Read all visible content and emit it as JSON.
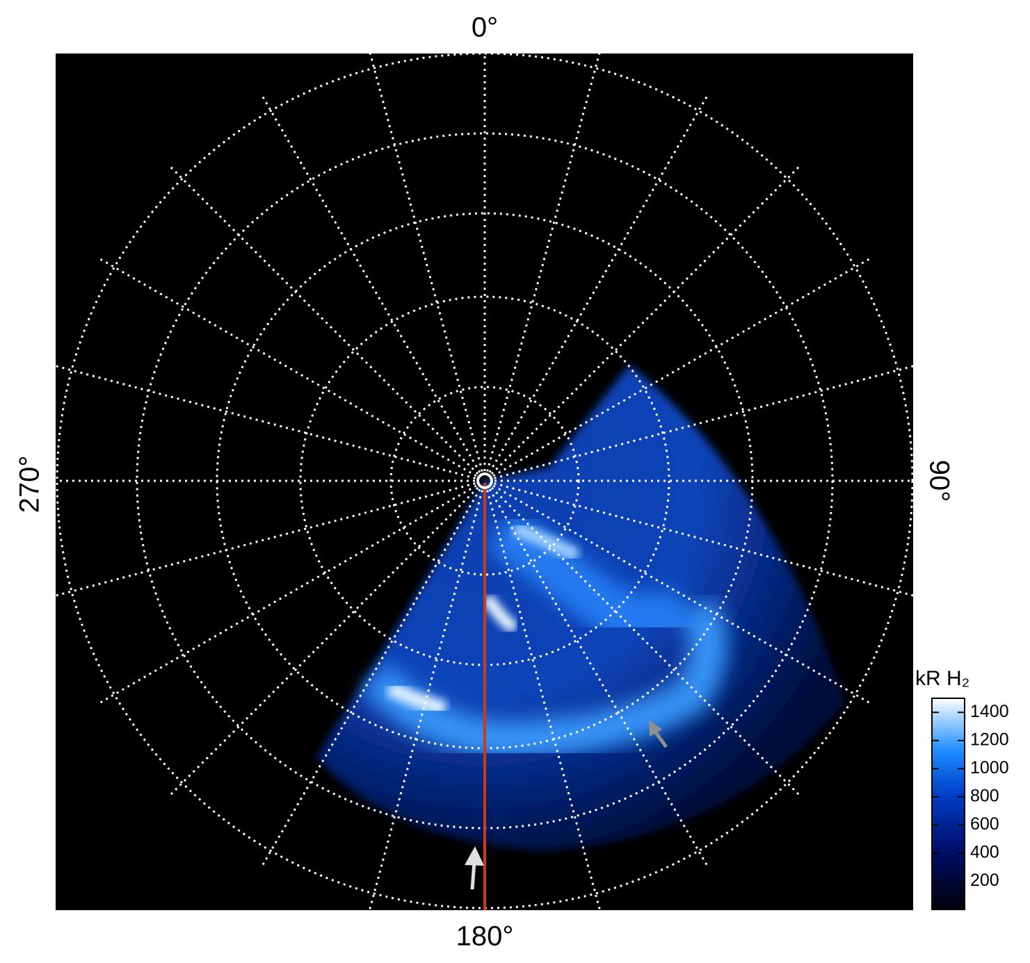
{
  "chart_data": {
    "type": "polar-image",
    "angle_labels": {
      "top": "0°",
      "right": "90°",
      "bottom": "180°",
      "left": "270°"
    },
    "colorbar": {
      "title": "kR H₂",
      "zlim": [
        0,
        1500
      ],
      "ticks": [
        200,
        400,
        600,
        800,
        1000,
        1200,
        1400
      ]
    }
  }
}
